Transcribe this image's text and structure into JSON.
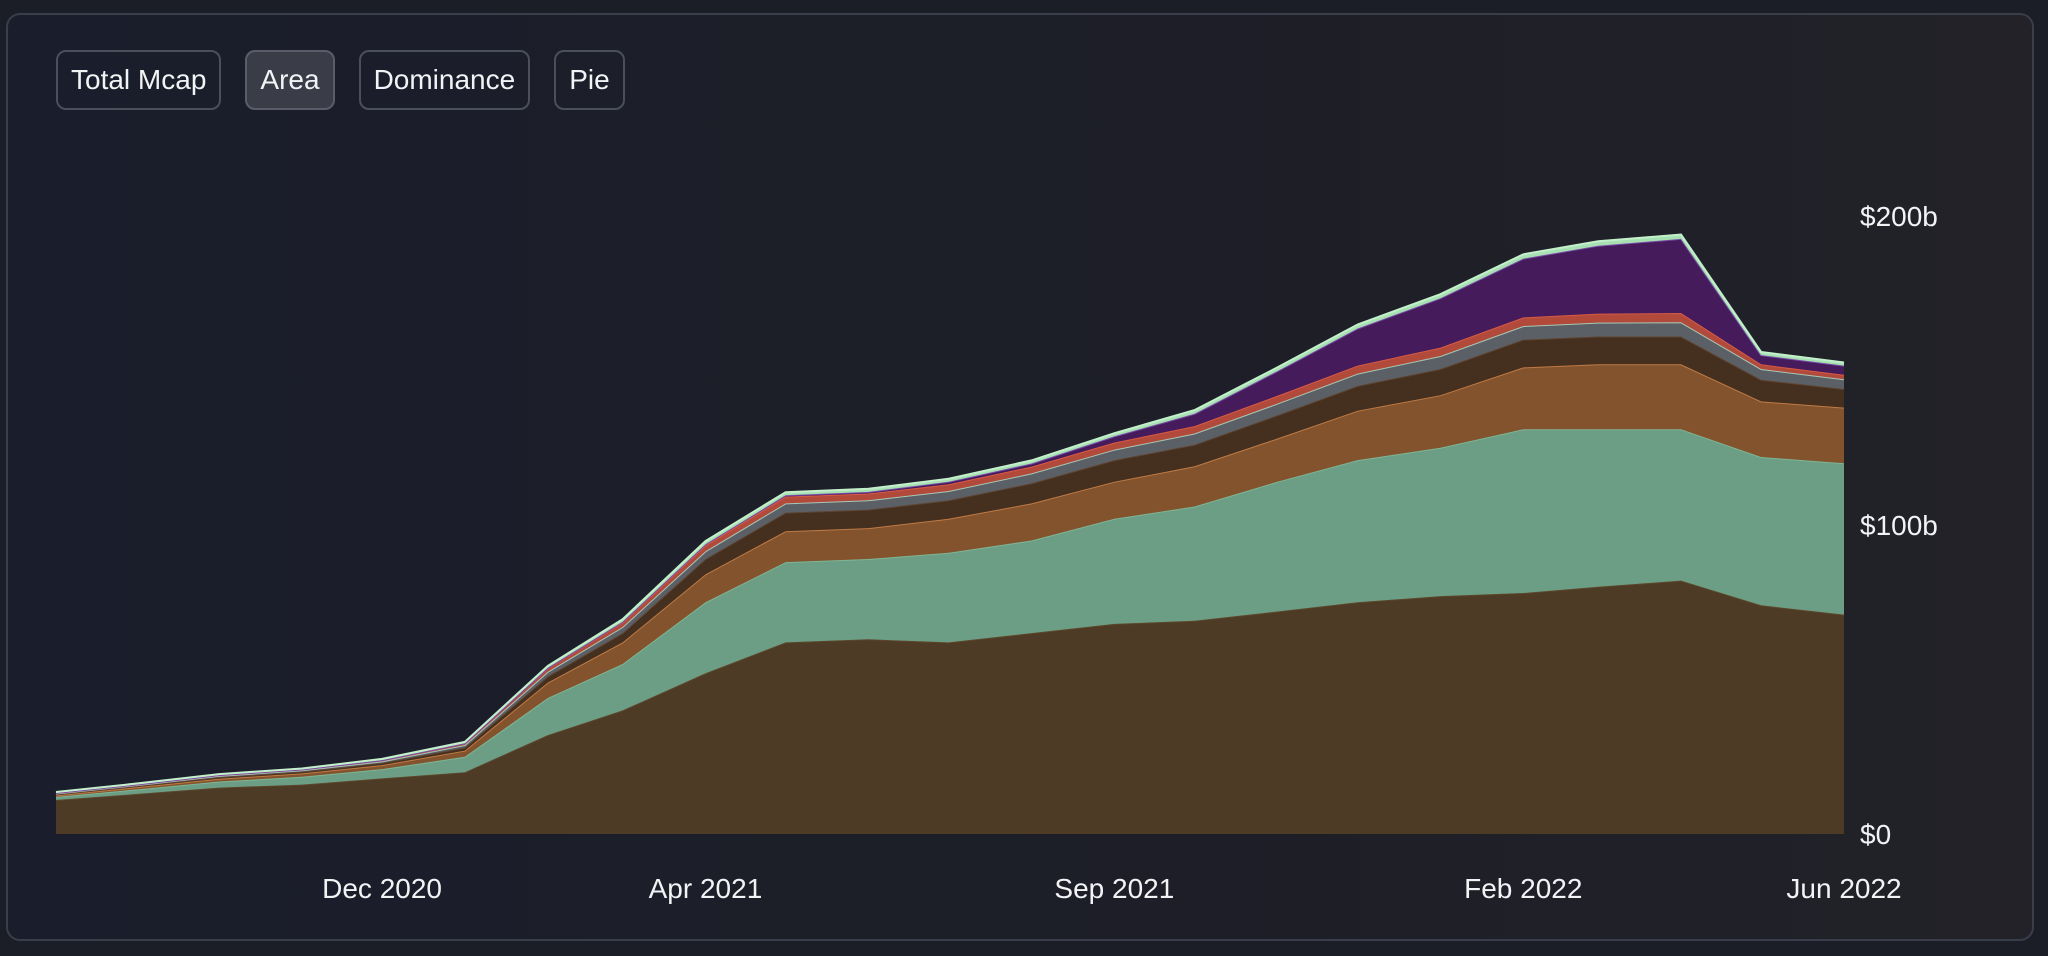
{
  "tabs": [
    {
      "label": "Total Mcap",
      "active": false
    },
    {
      "label": "Area",
      "active": true
    },
    {
      "label": "Dominance",
      "active": false
    },
    {
      "label": "Pie",
      "active": false
    }
  ],
  "chart_data": {
    "type": "area",
    "stacked": true,
    "title": "",
    "xlabel": "",
    "ylabel": "",
    "x_range": [
      "2020-08-01",
      "2022-06-01"
    ],
    "x_ticks": [
      {
        "date": "2020-12-01",
        "label": "Dec 2020"
      },
      {
        "date": "2021-04-01",
        "label": "Apr 2021"
      },
      {
        "date": "2021-09-01",
        "label": "Sep 2021"
      },
      {
        "date": "2022-02-01",
        "label": "Feb 2022"
      },
      {
        "date": "2022-06-01",
        "label": "Jun 2022"
      }
    ],
    "y_unit": "billion USD",
    "ylim": [
      0,
      200
    ],
    "y_ticks": [
      {
        "value": 0,
        "label": "$0"
      },
      {
        "value": 100,
        "label": "$100b"
      },
      {
        "value": 200,
        "label": "$200b"
      }
    ],
    "y_axis_position": "right",
    "grid": false,
    "legend": "none",
    "x": [
      "2020-08-01",
      "2020-09-01",
      "2020-10-01",
      "2020-11-01",
      "2020-12-01",
      "2021-01-01",
      "2021-02-01",
      "2021-03-01",
      "2021-04-01",
      "2021-05-01",
      "2021-06-01",
      "2021-07-01",
      "2021-08-01",
      "2021-09-01",
      "2021-10-01",
      "2021-11-01",
      "2021-12-01",
      "2022-01-01",
      "2022-02-01",
      "2022-03-01",
      "2022-04-01",
      "2022-05-01",
      "2022-06-01"
    ],
    "series": [
      {
        "color": "#4e3b25",
        "stroke": "#5c462c",
        "values": [
          11,
          13,
          15,
          16,
          18,
          20,
          32,
          40,
          52,
          62,
          63,
          62,
          65,
          68,
          69,
          72,
          75,
          77,
          78,
          80,
          82,
          74,
          71
        ]
      },
      {
        "color": "#6b9e84",
        "stroke": "#7fb596",
        "values": [
          1,
          1.5,
          2,
          2.5,
          3,
          5,
          12,
          15,
          23,
          26,
          26,
          29,
          30,
          34,
          37,
          42,
          46,
          48,
          53,
          51,
          49,
          48,
          49
        ]
      },
      {
        "color": "#82532c",
        "stroke": "#c07a45",
        "values": [
          0.5,
          0.7,
          0.9,
          1.1,
          1.3,
          2,
          5,
          7,
          9,
          10,
          10,
          11,
          12,
          12,
          13,
          14,
          16,
          17,
          20,
          21,
          21,
          18,
          18
        ]
      },
      {
        "color": "#45301f",
        "stroke": "#5e4330",
        "values": [
          0.3,
          0.4,
          0.5,
          0.6,
          0.7,
          1,
          2,
          3,
          5,
          6,
          6,
          6,
          6.5,
          7,
          7,
          7.5,
          8,
          8.5,
          9,
          9,
          9,
          7,
          6
        ]
      },
      {
        "color": "#5b5f66",
        "stroke": "#a7c7b5",
        "values": [
          0.3,
          0.3,
          0.4,
          0.4,
          0.5,
          0.8,
          1.5,
          2,
          2.5,
          3,
          3,
          3,
          3.2,
          3.4,
          3.6,
          3.8,
          4,
          4.2,
          4.4,
          4.5,
          4.6,
          3.5,
          3.2
        ]
      },
      {
        "color": "#b14a3a",
        "stroke": "#d65a45",
        "values": [
          0.2,
          0.2,
          0.3,
          0.3,
          0.4,
          0.6,
          1.2,
          1.5,
          2,
          2.2,
          2.2,
          2.2,
          2.2,
          2.3,
          2.4,
          2.5,
          2.6,
          2.7,
          2.8,
          2.9,
          3,
          1.5,
          1.4
        ]
      },
      {
        "color": "#451b5c",
        "stroke": "#7a4aa8",
        "values": [
          0,
          0,
          0,
          0,
          0,
          0,
          0.1,
          0.2,
          0.3,
          0.4,
          0.5,
          0.8,
          1,
          2,
          4,
          8,
          12,
          16,
          19,
          22,
          24,
          3,
          3
        ]
      },
      {
        "color": "#a7e0b3",
        "stroke": "#c3f0cb",
        "values": [
          0.3,
          0.3,
          0.3,
          0.3,
          0.4,
          0.4,
          0.6,
          0.8,
          1,
          1,
          1,
          1,
          1,
          1,
          1.2,
          1.2,
          1.3,
          1.3,
          1.4,
          1.4,
          1.4,
          1,
          1
        ]
      }
    ]
  }
}
